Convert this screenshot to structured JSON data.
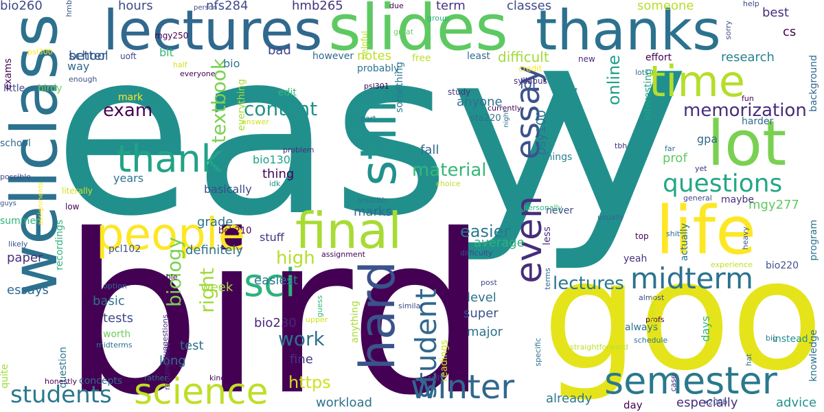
{
  "words": [
    {
      "text": "easy",
      "color": "#21908d"
    },
    {
      "text": "bird",
      "color": "#440154"
    },
    {
      "text": "y",
      "color": "#21908d"
    },
    {
      "text": "good",
      "color": "#e5e41a"
    },
    {
      "text": "lectures",
      "color": "#31688e"
    },
    {
      "text": "slides",
      "color": "#5ec962"
    },
    {
      "text": "thanks",
      "color": "#2c728e"
    },
    {
      "text": "wellclass",
      "color": "#2c728e"
    },
    {
      "text": "life",
      "color": "#fde725"
    },
    {
      "text": "lot",
      "color": "#7ad151"
    },
    {
      "text": "time",
      "color": "#b5de2b"
    },
    {
      "text": "semester",
      "color": "#2a788e"
    },
    {
      "text": "final",
      "color": "#a8db34"
    },
    {
      "text": "people",
      "color": "#fde725"
    },
    {
      "text": "hard",
      "color": "#3b528b"
    },
    {
      "text": "still",
      "color": "#21918c"
    },
    {
      "text": "even",
      "color": "#472d7b"
    },
    {
      "text": "essay",
      "color": "#3b528b"
    },
    {
      "text": "science",
      "color": "#bddf26"
    },
    {
      "text": "winter",
      "color": "#31688e"
    },
    {
      "text": "thank",
      "color": "#20a386"
    },
    {
      "text": "sci",
      "color": "#2db27d"
    },
    {
      "text": "midterm",
      "color": "#2c728e"
    },
    {
      "text": "students",
      "color": "#2a788e"
    },
    {
      "text": "student",
      "color": "#31688e"
    },
    {
      "text": "questions",
      "color": "#22a785"
    },
    {
      "text": "memorization",
      "color": "#472d7b"
    },
    {
      "text": "lectures",
      "color": "#2a788e"
    },
    {
      "text": "content",
      "color": "#21918c"
    },
    {
      "text": "exam",
      "color": "#440154"
    },
    {
      "text": "material",
      "color": "#35b779"
    },
    {
      "text": "textbook",
      "color": "#7ad151"
    },
    {
      "text": "biology",
      "color": "#7ad151"
    },
    {
      "text": "right",
      "color": "#a0da39"
    },
    {
      "text": "work",
      "color": "#2c728e"
    },
    {
      "text": "https",
      "color": "#d0e11c"
    },
    {
      "text": "easier",
      "color": "#2a788e"
    },
    {
      "text": "high",
      "color": "#b5de2b"
    },
    {
      "text": "online",
      "color": "#1fa088"
    },
    {
      "text": "anyone",
      "color": "#2c728e"
    },
    {
      "text": "lol",
      "color": "#3b528b"
    },
    {
      "text": "difficult",
      "color": "#a0da39"
    },
    {
      "text": "term",
      "color": "#46337e"
    },
    {
      "text": "classes",
      "color": "#3e4989"
    },
    {
      "text": "hours",
      "color": "#3e4989"
    },
    {
      "text": "school",
      "color": "#31688e"
    },
    {
      "text": "bad",
      "color": "#3e4989"
    },
    {
      "text": "notes",
      "color": "#bddf26"
    },
    {
      "text": "research",
      "color": "#26828e"
    },
    {
      "text": "best",
      "color": "#472d7b"
    },
    {
      "text": "hmb265",
      "color": "#46327e"
    },
    {
      "text": "nfs284",
      "color": "#3e4989"
    },
    {
      "text": "bio260",
      "color": "#3e4989"
    },
    {
      "text": "someone",
      "color": "#b5de2b"
    },
    {
      "text": "cs",
      "color": "#440154"
    },
    {
      "text": "psy100",
      "color": "#2c728e"
    },
    {
      "text": "mgy277",
      "color": "#5ec962"
    },
    {
      "text": "definitely",
      "color": "#2c728e"
    },
    {
      "text": "average",
      "color": "#2db27d"
    },
    {
      "text": "stuff",
      "color": "#46337e"
    },
    {
      "text": "marks",
      "color": "#31688e"
    },
    {
      "text": "easiest",
      "color": "#2a788e"
    },
    {
      "text": "tests",
      "color": "#3e4989"
    },
    {
      "text": "basic",
      "color": "#2c728e"
    },
    {
      "text": "level",
      "color": "#2c728e"
    },
    {
      "text": "super",
      "color": "#3b528b"
    },
    {
      "text": "major",
      "color": "#2c728e"
    },
    {
      "text": "paper",
      "color": "#472d7b"
    },
    {
      "text": "essays",
      "color": "#31688e"
    },
    {
      "text": "grade",
      "color": "#2c728e"
    },
    {
      "text": "prof",
      "color": "#5ec962"
    },
    {
      "text": "thing",
      "color": "#440154"
    },
    {
      "text": "fall",
      "color": "#31688e"
    },
    {
      "text": "week",
      "color": "#a0da39"
    },
    {
      "text": "test",
      "color": "#2c728e"
    },
    {
      "text": "long",
      "color": "#2c728e"
    },
    {
      "text": "fine",
      "color": "#46327e"
    },
    {
      "text": "workload",
      "color": "#2c728e"
    },
    {
      "text": "already",
      "color": "#2a788e"
    },
    {
      "text": "advice",
      "color": "#21918c"
    },
    {
      "text": "especially",
      "color": "#472d7b"
    },
    {
      "text": "bio230",
      "color": "#482878"
    },
    {
      "text": "bio130",
      "color": "#20a386"
    },
    {
      "text": "years",
      "color": "#2c728e"
    },
    {
      "text": "basically",
      "color": "#3e4989"
    },
    {
      "text": "bio",
      "color": "#2a788e"
    },
    {
      "text": "bit",
      "color": "#35b779"
    },
    {
      "text": "way",
      "color": "#31688e"
    },
    {
      "text": "birdy",
      "color": "#6ccd5a"
    },
    {
      "text": "little",
      "color": "#3e4989"
    },
    {
      "text": "exams",
      "color": "#440154"
    },
    {
      "text": "better",
      "color": "#3b528b"
    },
    {
      "text": "school",
      "color": "#31688e"
    },
    {
      "text": "mark",
      "color": "#fde725"
    },
    {
      "text": "worth",
      "color": "#6ccd5a"
    },
    {
      "text": "quite",
      "color": "#a0da39"
    },
    {
      "text": "summer",
      "color": "#2db27d"
    },
    {
      "text": "pcl102",
      "color": "#3b528b"
    },
    {
      "text": "question",
      "color": "#2c728e"
    },
    {
      "text": "recordings",
      "color": "#2db27d"
    },
    {
      "text": "concepts",
      "color": "#31688e"
    },
    {
      "text": "bio220",
      "color": "#3b528b"
    },
    {
      "text": "instead",
      "color": "#21918c"
    },
    {
      "text": "days",
      "color": "#35b779"
    },
    {
      "text": "always",
      "color": "#2c728e"
    },
    {
      "text": "yeah",
      "color": "#46337e"
    },
    {
      "text": "top",
      "color": "#440154"
    },
    {
      "text": "gpa",
      "color": "#31688e"
    },
    {
      "text": "maybe",
      "color": "#472d7b"
    },
    {
      "text": "harder",
      "color": "#31688e"
    },
    {
      "text": "things",
      "color": "#26828e"
    },
    {
      "text": "never",
      "color": "#3e4989"
    },
    {
      "text": "less",
      "color": "#472d7b"
    },
    {
      "text": "actually",
      "color": "#2c728e"
    },
    {
      "text": "program",
      "color": "#2c728e"
    },
    {
      "text": "knowledge",
      "color": "#2c728e"
    },
    {
      "text": "background",
      "color": "#31688e"
    },
    {
      "text": "interesting",
      "color": "#20a386"
    },
    {
      "text": "something",
      "color": "#2a788e"
    },
    {
      "text": "everything",
      "color": "#a8db34"
    },
    {
      "text": "anything",
      "color": "#a8db34"
    },
    {
      "text": "readings",
      "color": "#d0e11c"
    },
    {
      "text": "probably",
      "color": "#2c728e"
    },
    {
      "text": "free",
      "color": "#bddf26"
    },
    {
      "text": "least",
      "color": "#31688e"
    },
    {
      "text": "however",
      "color": "#31688e"
    },
    {
      "text": "effort",
      "color": "#440154"
    },
    {
      "text": "sta220",
      "color": "#2c728e"
    },
    {
      "text": "edit",
      "color": "#35b779"
    },
    {
      "text": "psl300",
      "color": "#fde725"
    },
    {
      "text": "mgy250",
      "color": "#440154"
    },
    {
      "text": "uoft",
      "color": "#3e4989"
    },
    {
      "text": "half",
      "color": "#d0e11c"
    },
    {
      "text": "everyone",
      "color": "#440154"
    },
    {
      "text": "enough",
      "color": "#3b528b"
    },
    {
      "text": "study",
      "color": "#46337e"
    },
    {
      "text": "syllabus",
      "color": "#472d7b"
    },
    {
      "text": "fun",
      "color": "#440154"
    },
    {
      "text": "lots",
      "color": "#2c728e"
    },
    {
      "text": "sorry",
      "color": "#3e4989"
    },
    {
      "text": "help",
      "color": "#3e4989"
    },
    {
      "text": "new",
      "color": "#472d7b"
    },
    {
      "text": "credit",
      "color": "#fde725"
    },
    {
      "text": "helpful",
      "color": "#b5de2b"
    },
    {
      "text": "great",
      "color": "#6ccd5a"
    },
    {
      "text": "group",
      "color": "#2db27d"
    },
    {
      "text": "due",
      "color": "#440154"
    },
    {
      "text": "person",
      "color": "#3e4989"
    },
    {
      "text": "hmb",
      "color": "#3b528b"
    },
    {
      "text": "psl301",
      "color": "#440154"
    },
    {
      "text": "part",
      "color": "#2c728e"
    },
    {
      "text": "night",
      "color": "#2c728e"
    },
    {
      "text": "answer",
      "color": "#d0e11c"
    },
    {
      "text": "problem",
      "color": "#472d7b"
    },
    {
      "text": "currently",
      "color": "#440154"
    },
    {
      "text": "tbh",
      "color": "#472d7b"
    },
    {
      "text": "far",
      "color": "#2c728e"
    },
    {
      "text": "yet",
      "color": "#472d7b"
    },
    {
      "text": "idk",
      "color": "#21918c"
    },
    {
      "text": "choice",
      "color": "#bddf26"
    },
    {
      "text": "breadth",
      "color": "#2c728e"
    },
    {
      "text": "personally",
      "color": "#35b779"
    },
    {
      "text": "general",
      "color": "#3e4989"
    },
    {
      "text": "usually",
      "color": "#31688e"
    },
    {
      "text": "heavy",
      "color": "#3b528b"
    },
    {
      "text": "possible",
      "color": "#3e4989"
    },
    {
      "text": "assignments",
      "color": "#fde725"
    },
    {
      "text": "literally",
      "color": "#d0e11c"
    },
    {
      "text": "guys",
      "color": "#3b528b"
    },
    {
      "text": "low",
      "color": "#440154"
    },
    {
      "text": "shit",
      "color": "#2c728e"
    },
    {
      "text": "likely",
      "color": "#3b528b"
    },
    {
      "text": "bch210",
      "color": "#440154"
    },
    {
      "text": "assignment",
      "color": "#440154"
    },
    {
      "text": "difficulty",
      "color": "#3e4989"
    },
    {
      "text": "experience",
      "color": "#bddf26"
    },
    {
      "text": "option",
      "color": "#31688e"
    },
    {
      "text": "able",
      "color": "#440154"
    },
    {
      "text": "requirement",
      "color": "#482878"
    },
    {
      "text": "midterms",
      "color": "#2c728e"
    },
    {
      "text": "guess",
      "color": "#35b779"
    },
    {
      "text": "upper",
      "color": "#d0e11c"
    },
    {
      "text": "suggestions",
      "color": "#472d7b"
    },
    {
      "text": "similar",
      "color": "#3e4989"
    },
    {
      "text": "post",
      "color": "#3e4989"
    },
    {
      "text": "specific",
      "color": "#2c728e"
    },
    {
      "text": "almost",
      "color": "#3e4989"
    },
    {
      "text": "terms",
      "color": "#31688e"
    },
    {
      "text": "profs",
      "color": "#440154"
    },
    {
      "text": "different",
      "color": "#d0e11c"
    },
    {
      "text": "hat",
      "color": "#2c728e"
    },
    {
      "text": "big",
      "color": "#2c728e"
    },
    {
      "text": "schedule",
      "color": "#2c728e"
    },
    {
      "text": "straightforward",
      "color": "#bddf26"
    },
    {
      "text": "case",
      "color": "#472d7b"
    },
    {
      "text": "honestly",
      "color": "#440154"
    },
    {
      "text": "rather",
      "color": "#2c728e"
    },
    {
      "text": "kind",
      "color": "#440154"
    },
    {
      "text": "easily",
      "color": "#3e4989"
    },
    {
      "text": "x200b",
      "color": "#3b528b"
    },
    {
      "text": "day",
      "color": "#440154"
    }
  ]
}
